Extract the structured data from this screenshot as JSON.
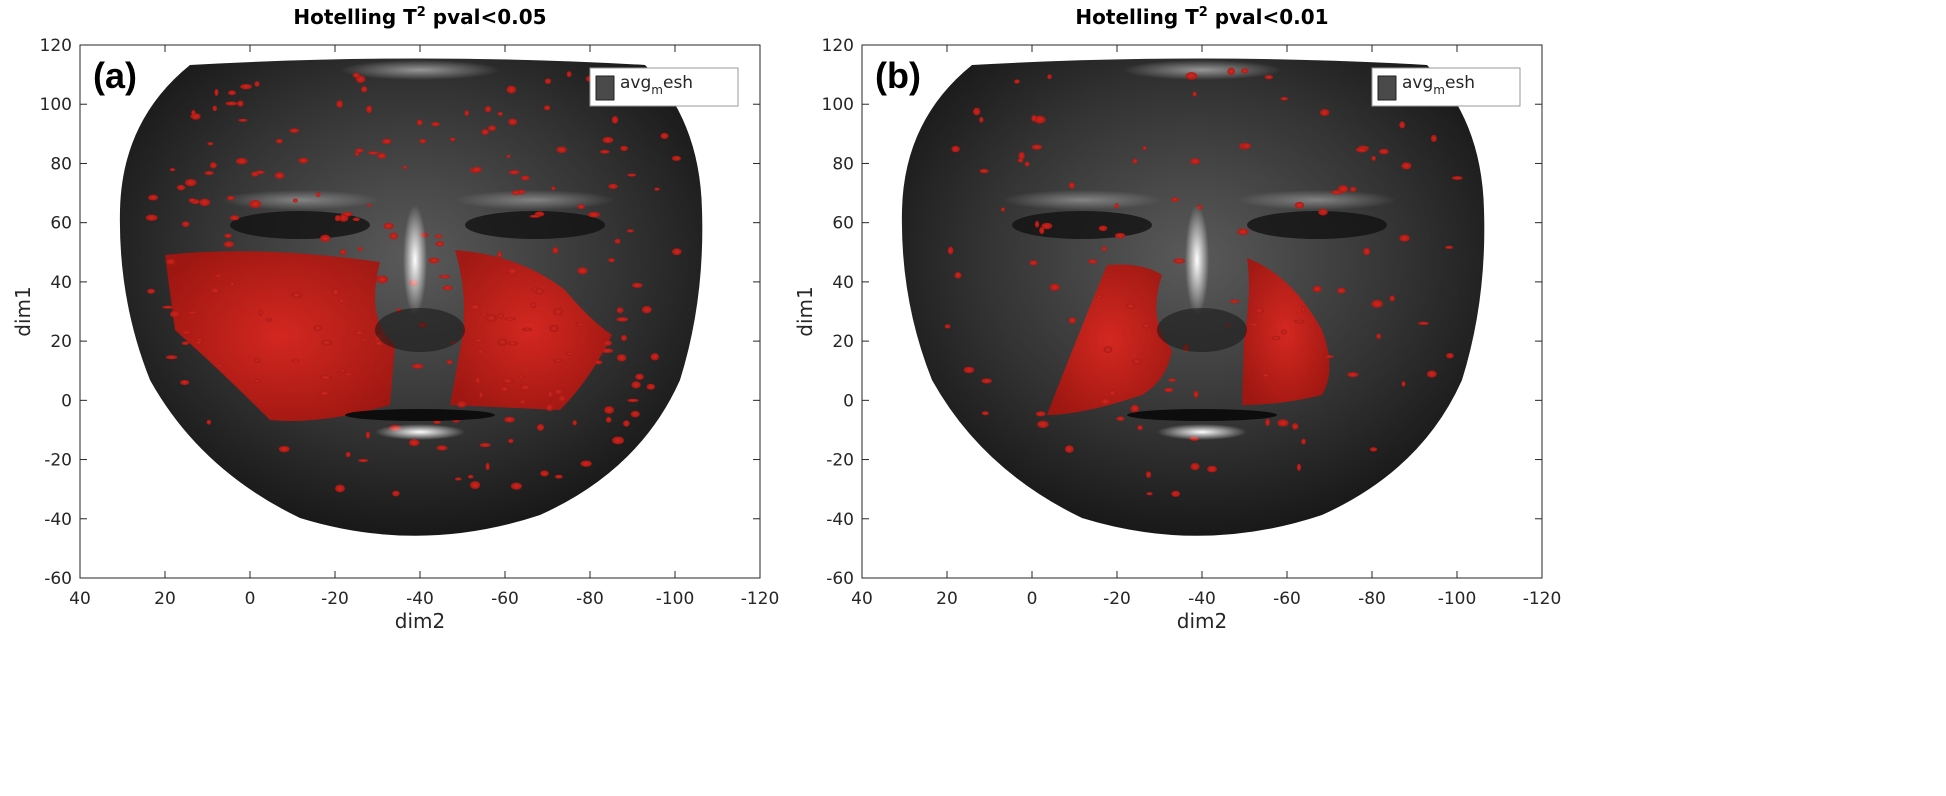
{
  "chart_data": [
    {
      "type": "surface",
      "title": "Hotelling T2 pval<0.05",
      "panel_label": "(a)",
      "xlabel": "dim2",
      "ylabel": "dim1",
      "xlim": [
        40,
        -120
      ],
      "ylim": [
        -60,
        120
      ],
      "xticks": [
        40,
        20,
        0,
        -20,
        -40,
        -60,
        -80,
        -100,
        -120
      ],
      "yticks": [
        -60,
        -40,
        -20,
        0,
        20,
        40,
        60,
        80,
        100,
        120
      ],
      "legend": {
        "label": "avgmesh",
        "color": "#4a4a4a"
      }
    },
    {
      "type": "surface",
      "title": "Hotelling T2 pval<0.01",
      "panel_label": "(b)",
      "xlabel": "dim2",
      "ylabel": "dim1",
      "xlim": [
        40,
        -120
      ],
      "ylim": [
        -60,
        120
      ],
      "xticks": [
        40,
        20,
        0,
        -20,
        -40,
        -60,
        -80,
        -100,
        -120
      ],
      "yticks": [
        -60,
        -40,
        -20,
        0,
        20,
        40,
        60,
        80,
        100,
        120
      ],
      "legend": {
        "label": "avgmesh",
        "color": "#4a4a4a"
      }
    }
  ]
}
